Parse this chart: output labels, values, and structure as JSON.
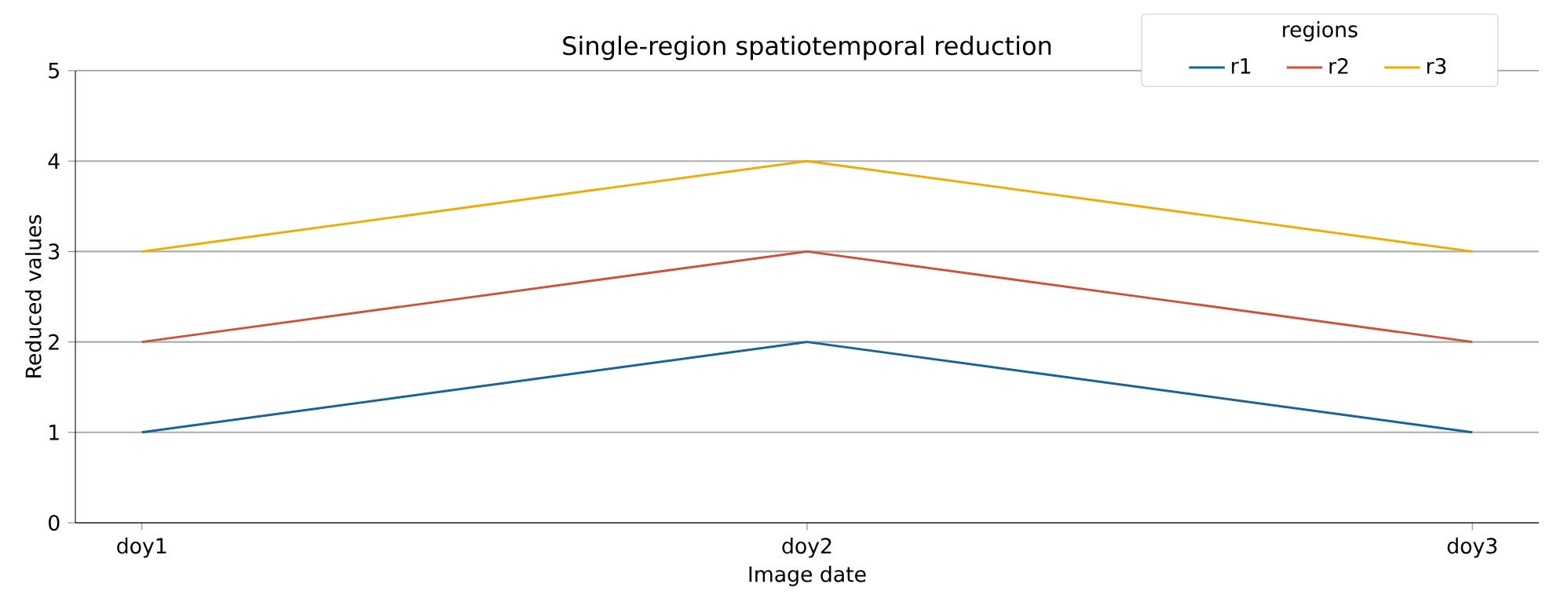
{
  "chart_data": {
    "type": "line",
    "title": "Single-region spatiotemporal reduction",
    "xlabel": "Image date",
    "ylabel": "Reduced values",
    "legend_title": "regions",
    "categories": [
      "doy1",
      "doy2",
      "doy3"
    ],
    "series": [
      {
        "name": "r1",
        "color": "#17649a",
        "values": [
          1,
          2,
          1
        ]
      },
      {
        "name": "r2",
        "color": "#d1503a",
        "values": [
          2,
          3,
          2
        ]
      },
      {
        "name": "r3",
        "color": "#f0aa00",
        "values": [
          3,
          4,
          3
        ]
      }
    ],
    "ylim": [
      0,
      5
    ],
    "yticks": [
      0,
      1,
      2,
      3,
      4,
      5
    ],
    "grid": "y",
    "legend": "top right",
    "marker": "none",
    "line_style": "solid"
  }
}
